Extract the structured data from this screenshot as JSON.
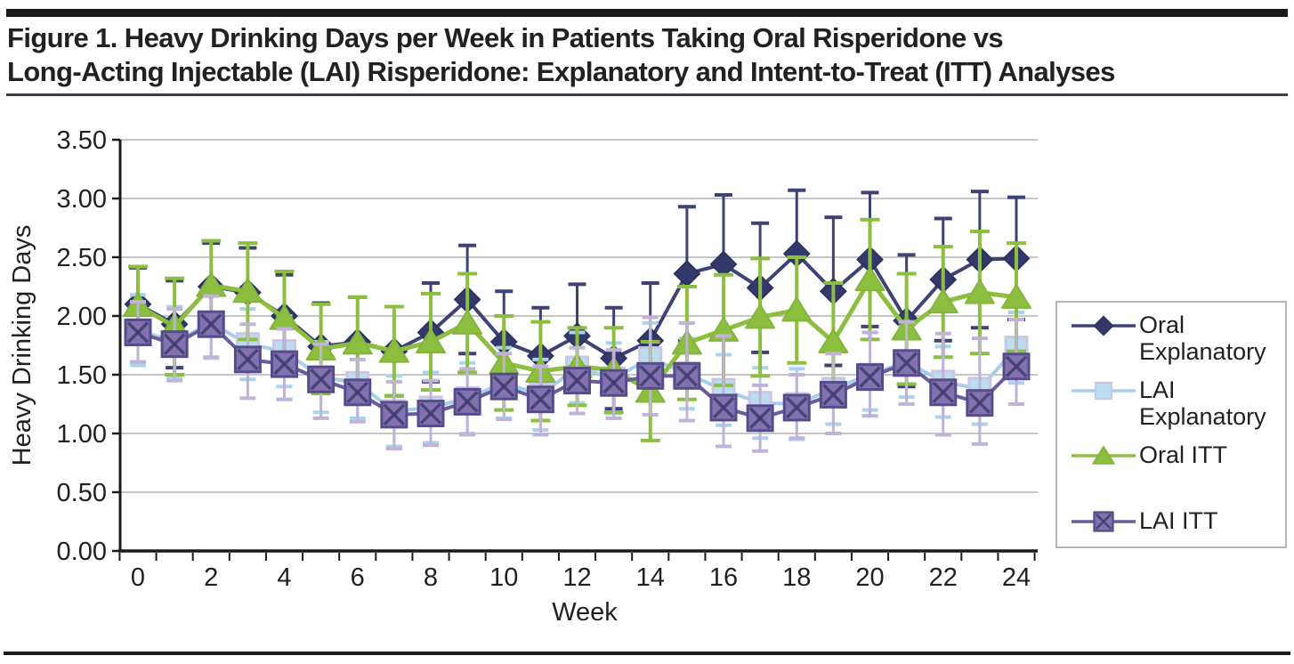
{
  "figure": {
    "title_line1": "Figure 1. Heavy Drinking Days per Week in Patients Taking Oral Risperidone vs",
    "title_line2": "Long-Acting Injectable (LAI) Risperidone: Explanatory and Intent-to-Treat (ITT) Analyses"
  },
  "chart_data": {
    "type": "line",
    "xlabel": "Week",
    "ylabel": "Heavy Drinking Days",
    "ylim": [
      0.0,
      3.5
    ],
    "ytick_labels": [
      "0.00",
      "0.50",
      "1.00",
      "1.50",
      "2.00",
      "2.50",
      "3.00",
      "3.50"
    ],
    "x": [
      0,
      1,
      2,
      3,
      4,
      5,
      6,
      7,
      8,
      9,
      10,
      11,
      12,
      13,
      14,
      15,
      16,
      17,
      18,
      19,
      20,
      21,
      22,
      23,
      24
    ],
    "xtick_labels": [
      "0",
      "2",
      "4",
      "6",
      "8",
      "10",
      "12",
      "14",
      "16",
      "18",
      "20",
      "22",
      "24"
    ],
    "grid": true,
    "legend_position": "right",
    "error_bars": true,
    "colors": {
      "grid": "#b4b4b4",
      "axis": "#1a1a1a",
      "text": "#231f20"
    },
    "series": [
      {
        "name": "Oral Explanatory",
        "marker": "diamond",
        "color": "#3e4274",
        "marker_fill": "#333a6b",
        "marker_border": "#2c3260",
        "err_color": "#3e4274",
        "values": [
          2.1,
          1.93,
          2.25,
          2.2,
          2.0,
          1.74,
          1.78,
          1.7,
          1.86,
          2.14,
          1.78,
          1.66,
          1.83,
          1.64,
          1.79,
          2.36,
          2.44,
          2.24,
          2.53,
          2.21,
          2.48,
          1.96,
          2.31,
          2.48,
          2.49
        ],
        "err_up": [
          0.31,
          0.37,
          0.37,
          0.38,
          0.35,
          0.37,
          0.38,
          0.38,
          0.42,
          0.46,
          0.43,
          0.41,
          0.44,
          0.43,
          0.49,
          0.57,
          0.59,
          0.55,
          0.54,
          0.63,
          0.57,
          0.56,
          0.52,
          0.58,
          0.52
        ],
        "err_down": [
          0.31,
          0.37,
          0.37,
          0.38,
          0.35,
          0.37,
          0.38,
          0.38,
          0.42,
          0.46,
          0.43,
          0.41,
          0.44,
          0.43,
          0.49,
          0.57,
          0.59,
          0.55,
          0.54,
          0.63,
          0.57,
          0.56,
          0.52,
          0.58,
          0.52
        ]
      },
      {
        "name": "LAI Explanatory",
        "marker": "square",
        "color": "#a6cfe9",
        "marker_fill": "#bcddf0",
        "marker_border": "#cbc5e6",
        "err_color": "#abd4ec",
        "values": [
          1.88,
          1.78,
          1.94,
          1.76,
          1.7,
          1.48,
          1.43,
          1.19,
          1.22,
          1.3,
          1.43,
          1.33,
          1.56,
          1.47,
          1.64,
          1.51,
          1.37,
          1.26,
          1.25,
          1.38,
          1.5,
          1.61,
          1.44,
          1.38,
          1.73
        ],
        "err_up": [
          0.3,
          0.3,
          0.3,
          0.3,
          0.3,
          0.3,
          0.3,
          0.3,
          0.3,
          0.3,
          0.3,
          0.3,
          0.3,
          0.3,
          0.3,
          0.3,
          0.3,
          0.3,
          0.3,
          0.3,
          0.3,
          0.3,
          0.3,
          0.3,
          0.3
        ],
        "err_down": [
          0.3,
          0.3,
          0.3,
          0.3,
          0.3,
          0.3,
          0.3,
          0.3,
          0.3,
          0.3,
          0.3,
          0.3,
          0.3,
          0.3,
          0.3,
          0.3,
          0.3,
          0.3,
          0.3,
          0.3,
          0.3,
          0.3,
          0.3,
          0.3,
          0.3
        ]
      },
      {
        "name": "Oral ITT",
        "marker": "triangle",
        "color": "#8cbe40",
        "marker_fill": "#8cbe40",
        "marker_border": "#85b43c",
        "err_color": "#8cbe40",
        "values": [
          2.09,
          1.91,
          2.26,
          2.21,
          1.98,
          1.72,
          1.77,
          1.7,
          1.78,
          1.94,
          1.6,
          1.53,
          1.57,
          1.54,
          1.36,
          1.77,
          1.88,
          1.99,
          2.05,
          1.78,
          2.31,
          1.89,
          2.12,
          2.2,
          2.16
        ],
        "err_up": [
          0.33,
          0.41,
          0.38,
          0.41,
          0.4,
          0.38,
          0.39,
          0.38,
          0.41,
          0.42,
          0.4,
          0.42,
          0.33,
          0.36,
          0.42,
          0.48,
          0.47,
          0.5,
          0.45,
          0.5,
          0.51,
          0.47,
          0.47,
          0.52,
          0.46
        ],
        "err_down": [
          0.33,
          0.41,
          0.38,
          0.41,
          0.4,
          0.38,
          0.39,
          0.38,
          0.41,
          0.42,
          0.4,
          0.42,
          0.33,
          0.36,
          0.42,
          0.48,
          0.47,
          0.5,
          0.45,
          0.5,
          0.51,
          0.47,
          0.47,
          0.52,
          0.46
        ]
      },
      {
        "name": "LAI ITT",
        "marker": "square-x",
        "color": "#695c9d",
        "marker_fill": "#8372b1",
        "marker_border": "#564c8c",
        "marker_x_color": "#3e3c6a",
        "err_color": "#c1b2d8",
        "values": [
          1.86,
          1.76,
          1.93,
          1.63,
          1.59,
          1.46,
          1.35,
          1.16,
          1.17,
          1.27,
          1.4,
          1.29,
          1.45,
          1.43,
          1.49,
          1.49,
          1.22,
          1.13,
          1.22,
          1.33,
          1.48,
          1.6,
          1.35,
          1.26,
          1.57
        ],
        "err_up": [
          0.26,
          0.3,
          0.24,
          0.3,
          0.3,
          0.3,
          0.28,
          0.28,
          0.28,
          0.28,
          0.28,
          0.28,
          0.28,
          0.28,
          0.5,
          0.45,
          0.61,
          0.28,
          0.28,
          0.35,
          0.38,
          0.35,
          0.5,
          0.55,
          0.4
        ],
        "err_down": [
          0.25,
          0.31,
          0.28,
          0.33,
          0.3,
          0.33,
          0.25,
          0.29,
          0.27,
          0.28,
          0.28,
          0.3,
          0.28,
          0.3,
          0.33,
          0.38,
          0.33,
          0.28,
          0.26,
          0.33,
          0.33,
          0.35,
          0.36,
          0.35,
          0.32
        ]
      }
    ]
  }
}
